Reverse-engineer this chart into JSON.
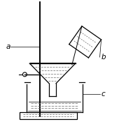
{
  "bg_color": "#ffffff",
  "line_color": "#000000",
  "dashed_color": "#666666",
  "label_color": "#000000",
  "label_a": "a",
  "label_b": "b",
  "label_c": "c",
  "fig_w": 1.7,
  "fig_h": 1.78,
  "dpi": 100
}
